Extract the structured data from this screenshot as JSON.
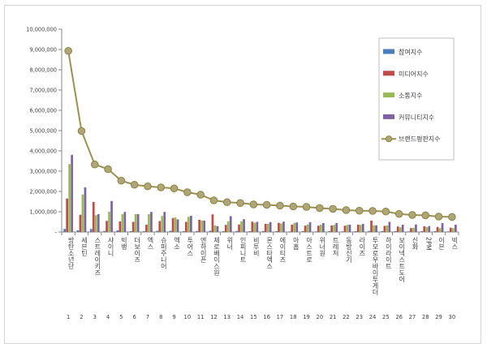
{
  "chart_data": {
    "type": "bar",
    "y_tick_labels": [
      "-",
      "1,000,000",
      "2,000,000",
      "3,000,000",
      "4,000,000",
      "5,000,000",
      "6,000,000",
      "7,000,000",
      "8,000,000",
      "9,000,000",
      "10,000,000"
    ],
    "ylim": [
      0,
      10000000
    ],
    "grid": false,
    "legend_position": "right",
    "ranks": [
      "1",
      "2",
      "3",
      "4",
      "5",
      "6",
      "7",
      "8",
      "9",
      "10",
      "11",
      "12",
      "13",
      "14",
      "15",
      "16",
      "17",
      "18",
      "19",
      "20",
      "21",
      "22",
      "23",
      "24",
      "25",
      "26",
      "27",
      "28",
      "29",
      "30"
    ],
    "categories": [
      "방탄소년단",
      "세븐틴",
      "스트레이키즈",
      "샤이니",
      "빅뱅",
      "더보이즈",
      "엑스",
      "슈퍼주니어",
      "엑소",
      "투어스",
      "엔하이픈",
      "제로베이스원",
      "위너",
      "인피니트",
      "비투비",
      "몬스타엑스",
      "에이티즈",
      "아홉",
      "아스트로",
      "위너원",
      "트레저",
      "동방신기",
      "라이즈",
      "투모로우바이투게더",
      "하이라이트",
      "보이넥스트도어",
      "신화",
      "2PM",
      "이븐",
      "빅스"
    ],
    "series": [
      {
        "name": "참여지수",
        "color": "#4a7ebb",
        "values": [
          150000,
          80000,
          150000,
          50000,
          80000,
          40000,
          40000,
          60000,
          60000,
          40000,
          50000,
          60000,
          40000,
          50000,
          40000,
          50000,
          40000,
          30000,
          40000,
          30000,
          40000,
          30000,
          40000,
          50000,
          40000,
          40000,
          30000,
          40000,
          40000,
          30000
        ]
      },
      {
        "name": "미디어지수",
        "color": "#be4b48",
        "values": [
          1650000,
          850000,
          1480000,
          550000,
          520000,
          500000,
          360000,
          540000,
          690000,
          500000,
          600000,
          870000,
          350000,
          370000,
          510000,
          400000,
          450000,
          360000,
          310000,
          310000,
          320000,
          310000,
          360000,
          560000,
          300000,
          270000,
          190000,
          280000,
          250000,
          210000
        ]
      },
      {
        "name": "소통지수",
        "color": "#98b954",
        "values": [
          3350000,
          1850000,
          830000,
          1000000,
          880000,
          880000,
          880000,
          790000,
          720000,
          750000,
          570000,
          320000,
          530000,
          530000,
          460000,
          400000,
          420000,
          450000,
          370000,
          360000,
          350000,
          350000,
          350000,
          330000,
          330000,
          230000,
          210000,
          250000,
          190000,
          190000
        ]
      },
      {
        "name": "커뮤니티지수",
        "color": "#7e62a1",
        "values": [
          3800000,
          2200000,
          880000,
          1530000,
          990000,
          880000,
          990000,
          990000,
          620000,
          800000,
          560000,
          290000,
          780000,
          630000,
          500000,
          490000,
          510000,
          470000,
          480000,
          440000,
          440000,
          360000,
          400000,
          330000,
          500000,
          360000,
          370000,
          290000,
          440000,
          360000
        ]
      },
      {
        "name": "브랜드평판지수",
        "color": "#9c9152",
        "marker_color": "#afa677",
        "values": [
          8930000,
          4980000,
          3330000,
          3100000,
          2530000,
          2330000,
          2250000,
          2200000,
          2150000,
          1960000,
          1840000,
          1560000,
          1470000,
          1430000,
          1360000,
          1340000,
          1300000,
          1260000,
          1240000,
          1180000,
          1140000,
          1080000,
          1050000,
          1040000,
          1010000,
          890000,
          840000,
          820000,
          760000,
          740000
        ]
      }
    ]
  }
}
